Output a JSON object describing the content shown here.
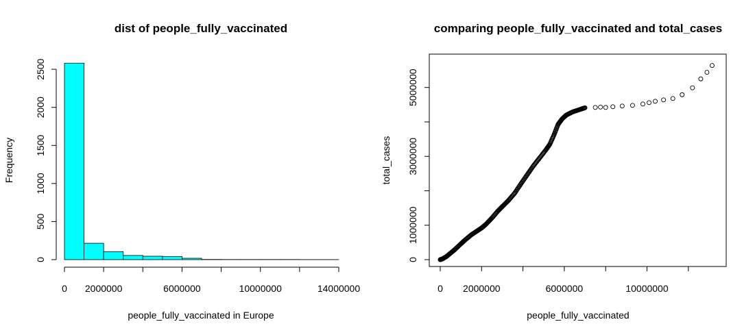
{
  "chart_data": [
    {
      "type": "bar",
      "title": "dist of people_fully_vaccinated",
      "xlabel": "people_fully_vaccinated in Europe",
      "ylabel": "Frequency",
      "bar_color": "#00ffff",
      "xlim": [
        0,
        14000000
      ],
      "ylim": [
        0,
        2600
      ],
      "x_ticks": [
        0,
        2000000,
        6000000,
        10000000,
        14000000
      ],
      "x_tick_labels": [
        "0",
        "2000000",
        "6000000",
        "10000000",
        "14000000"
      ],
      "y_ticks": [
        0,
        500,
        1000,
        1500,
        2000,
        2500
      ],
      "y_tick_labels": [
        "0",
        "500",
        "1000",
        "1500",
        "2000",
        "2500"
      ],
      "bins": [
        {
          "start": 0,
          "end": 1000000,
          "value": 2580
        },
        {
          "start": 1000000,
          "end": 2000000,
          "value": 215
        },
        {
          "start": 2000000,
          "end": 3000000,
          "value": 105
        },
        {
          "start": 3000000,
          "end": 4000000,
          "value": 55
        },
        {
          "start": 4000000,
          "end": 5000000,
          "value": 45
        },
        {
          "start": 5000000,
          "end": 6000000,
          "value": 42
        },
        {
          "start": 6000000,
          "end": 7000000,
          "value": 18
        },
        {
          "start": 7000000,
          "end": 8000000,
          "value": 3
        },
        {
          "start": 8000000,
          "end": 9000000,
          "value": 2
        },
        {
          "start": 9000000,
          "end": 10000000,
          "value": 2
        },
        {
          "start": 10000000,
          "end": 11000000,
          "value": 2
        },
        {
          "start": 11000000,
          "end": 12000000,
          "value": 2
        },
        {
          "start": 12000000,
          "end": 13000000,
          "value": 1
        },
        {
          "start": 13000000,
          "end": 14000000,
          "value": 1
        }
      ]
    },
    {
      "type": "scatter",
      "title": "comparing people_fully_vaccinated and total_cases",
      "xlabel": "people_fully_vaccinated",
      "ylabel": "total_cases",
      "point_style": "open-circle",
      "x_ticks": [
        0,
        2000000,
        4000000,
        6000000,
        8000000,
        10000000,
        12000000
      ],
      "x_tick_labels": [
        "0",
        "2000000",
        "",
        "6000000",
        "",
        "10000000",
        ""
      ],
      "y_ticks": [
        0,
        1000000,
        2000000,
        3000000,
        4000000,
        5000000
      ],
      "y_tick_labels": [
        "0",
        "1000000",
        "",
        "3000000",
        "",
        "5000000"
      ],
      "xlim": [
        0,
        13300000
      ],
      "ylim": [
        0,
        5750000
      ],
      "curve_points": [
        [
          0,
          0
        ],
        [
          100000,
          20000
        ],
        [
          300000,
          90000
        ],
        [
          500000,
          190000
        ],
        [
          700000,
          290000
        ],
        [
          1000000,
          460000
        ],
        [
          1200000,
          570000
        ],
        [
          1500000,
          720000
        ],
        [
          1800000,
          840000
        ],
        [
          2000000,
          920000
        ],
        [
          2200000,
          1020000
        ],
        [
          2500000,
          1210000
        ],
        [
          2800000,
          1420000
        ],
        [
          3000000,
          1540000
        ],
        [
          3300000,
          1720000
        ],
        [
          3600000,
          1930000
        ],
        [
          3900000,
          2200000
        ],
        [
          4200000,
          2460000
        ],
        [
          4500000,
          2720000
        ],
        [
          4800000,
          2950000
        ],
        [
          5100000,
          3180000
        ],
        [
          5300000,
          3350000
        ],
        [
          5500000,
          3620000
        ],
        [
          5700000,
          3930000
        ],
        [
          5900000,
          4090000
        ],
        [
          6100000,
          4200000
        ],
        [
          6400000,
          4290000
        ],
        [
          6700000,
          4350000
        ],
        [
          7000000,
          4410000
        ]
      ],
      "sparse_points": [
        [
          7500000,
          4420000
        ],
        [
          7750000,
          4430000
        ],
        [
          8000000,
          4420000
        ],
        [
          8350000,
          4440000
        ],
        [
          8800000,
          4460000
        ],
        [
          9300000,
          4480000
        ],
        [
          9800000,
          4520000
        ],
        [
          10100000,
          4560000
        ],
        [
          10400000,
          4600000
        ],
        [
          10800000,
          4640000
        ],
        [
          11250000,
          4680000
        ],
        [
          11700000,
          4790000
        ],
        [
          12200000,
          4990000
        ],
        [
          12600000,
          5250000
        ],
        [
          12900000,
          5440000
        ],
        [
          13150000,
          5640000
        ]
      ]
    }
  ]
}
